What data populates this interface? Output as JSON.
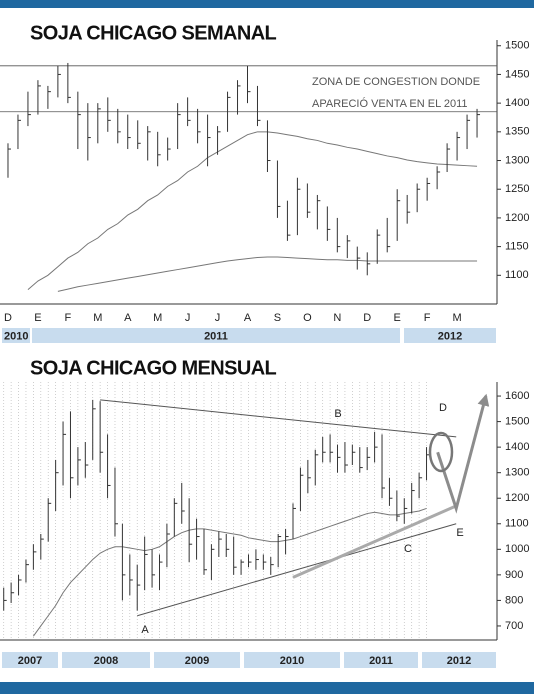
{
  "chart_data": [
    {
      "type": "ohlc",
      "title": "SOJA CHICAGO SEMANAL",
      "categories": [
        "D",
        null,
        null,
        "E",
        null,
        null,
        "F",
        null,
        null,
        "M",
        null,
        null,
        "A",
        null,
        null,
        "M",
        null,
        null,
        "J",
        null,
        null,
        "J",
        null,
        null,
        "A",
        null,
        null,
        "S",
        null,
        null,
        "O",
        null,
        null,
        "N",
        null,
        null,
        "D",
        null,
        null,
        "E",
        null,
        null,
        "F",
        null,
        null,
        "M",
        null,
        null
      ],
      "high": [
        1330,
        1380,
        1420,
        1440,
        1430,
        1465,
        1470,
        1420,
        1400,
        1400,
        1410,
        1390,
        1380,
        1370,
        1360,
        1350,
        1340,
        1400,
        1410,
        1390,
        1380,
        1360,
        1420,
        1440,
        1465,
        1430,
        1370,
        1300,
        1230,
        1270,
        1260,
        1240,
        1220,
        1200,
        1170,
        1150,
        1140,
        1180,
        1200,
        1250,
        1240,
        1260,
        1270,
        1290,
        1330,
        1350,
        1380,
        1390
      ],
      "low": [
        1270,
        1320,
        1360,
        1380,
        1390,
        1410,
        1400,
        1320,
        1300,
        1330,
        1350,
        1330,
        1320,
        1320,
        1300,
        1290,
        1300,
        1320,
        1360,
        1330,
        1290,
        1310,
        1350,
        1380,
        1400,
        1360,
        1280,
        1200,
        1160,
        1170,
        1200,
        1180,
        1160,
        1140,
        1130,
        1110,
        1100,
        1120,
        1140,
        1160,
        1190,
        1210,
        1230,
        1250,
        1280,
        1300,
        1320,
        1340
      ],
      "close": [
        1320,
        1370,
        1380,
        1430,
        1420,
        1450,
        1410,
        1380,
        1340,
        1390,
        1370,
        1350,
        1340,
        1330,
        1350,
        1310,
        1320,
        1380,
        1370,
        1350,
        1340,
        1350,
        1410,
        1430,
        1420,
        1370,
        1300,
        1220,
        1170,
        1250,
        1210,
        1230,
        1180,
        1150,
        1160,
        1130,
        1120,
        1170,
        1150,
        1230,
        1210,
        1250,
        1260,
        1280,
        1320,
        1340,
        1370,
        1380
      ],
      "moving_averages": [
        [
          null,
          null,
          1075,
          1090,
          1100,
          1115,
          1130,
          1140,
          1155,
          1165,
          1180,
          1190,
          1205,
          1215,
          1230,
          1240,
          1255,
          1265,
          1280,
          1290,
          1305,
          1315,
          1325,
          1335,
          1345,
          1350,
          1350,
          1348,
          1345,
          1342,
          1338,
          1335,
          1330,
          1327,
          1323,
          1320,
          1316,
          1312,
          1308,
          1305,
          1301,
          1298,
          1296,
          1294,
          1293,
          1292,
          1291,
          1290
        ],
        [
          null,
          null,
          null,
          null,
          null,
          1072,
          1076,
          1080,
          1083,
          1086,
          1089,
          1092,
          1095,
          1098,
          1101,
          1104,
          1107,
          1110,
          1113,
          1116,
          1119,
          1122,
          1125,
          1127,
          1129,
          1131,
          1132,
          1132,
          1131,
          1130,
          1129,
          1128,
          1127,
          1127,
          1126,
          1126,
          1125,
          1125,
          1125,
          1125,
          1125,
          1125,
          1125,
          1125,
          1125,
          1125,
          1125,
          1125
        ]
      ],
      "hlines": [
        1465,
        1385
      ],
      "annotation": [
        "ZONA DE CONGESTION DONDE",
        "APARECIÓ VENTA EN EL 2011"
      ],
      "years": [
        "2010",
        "2011",
        "2012"
      ],
      "xlim": [
        -0.8,
        49
      ],
      "ylim": [
        1050,
        1510
      ],
      "yticks": [
        1100,
        1150,
        1200,
        1250,
        1300,
        1350,
        1400,
        1450,
        1500
      ],
      "grid": false,
      "color": "#333333",
      "ma_color": "#777777"
    },
    {
      "type": "ohlc",
      "title": "SOJA CHICAGO MENSUAL",
      "high": [
        850,
        870,
        900,
        960,
        1020,
        1060,
        1200,
        1350,
        1500,
        1540,
        1400,
        1420,
        1585,
        1580,
        1450,
        1320,
        1100,
        980,
        940,
        1050,
        1000,
        980,
        1100,
        1200,
        1260,
        1200,
        1120,
        1080,
        1020,
        1070,
        1060,
        1050,
        960,
        980,
        1000,
        980,
        970,
        1060,
        1080,
        1180,
        1320,
        1350,
        1390,
        1440,
        1450,
        1410,
        1420,
        1410,
        1400,
        1400,
        1460,
        1450,
        1280,
        1230,
        1200,
        1260,
        1300,
        1400
      ],
      "low": [
        760,
        790,
        820,
        870,
        920,
        960,
        1030,
        1150,
        1250,
        1200,
        1250,
        1280,
        1350,
        1300,
        1200,
        1050,
        800,
        820,
        760,
        840,
        850,
        840,
        930,
        1050,
        1100,
        950,
        960,
        900,
        880,
        970,
        970,
        900,
        900,
        930,
        920,
        920,
        900,
        930,
        980,
        1040,
        1150,
        1220,
        1250,
        1340,
        1340,
        1300,
        1300,
        1330,
        1300,
        1310,
        1340,
        1200,
        1170,
        1110,
        1100,
        1140,
        1200,
        1270
      ],
      "close": [
        800,
        830,
        880,
        940,
        990,
        1040,
        1180,
        1300,
        1450,
        1280,
        1350,
        1330,
        1550,
        1380,
        1250,
        1100,
        900,
        880,
        860,
        980,
        900,
        950,
        1060,
        1180,
        1150,
        1020,
        1050,
        920,
        1000,
        1040,
        1000,
        930,
        950,
        950,
        960,
        950,
        940,
        1050,
        1050,
        1160,
        1290,
        1280,
        1370,
        1380,
        1380,
        1360,
        1330,
        1380,
        1320,
        1360,
        1400,
        1240,
        1200,
        1130,
        1160,
        1230,
        1280,
        1370
      ],
      "moving_averages": [
        [
          null,
          null,
          null,
          null,
          660,
          700,
          740,
          780,
          830,
          870,
          900,
          930,
          960,
          985,
          1000,
          1010,
          1010,
          1005,
          1000,
          995,
          1000,
          1010,
          1030,
          1050,
          1065,
          1075,
          1080,
          1080,
          1075,
          1070,
          1065,
          1060,
          1055,
          1045,
          1040,
          1035,
          1030,
          1030,
          1035,
          1040,
          1050,
          1060,
          1070,
          1080,
          1090,
          1100,
          1110,
          1120,
          1130,
          1140,
          1145,
          1140,
          1135,
          1135,
          1140,
          1145,
          1150,
          1160
        ]
      ],
      "trendlines": [
        {
          "points": [
            [
              13,
              1585
            ],
            [
              61,
              1440
            ]
          ],
          "color": "#555555",
          "width": 1
        },
        {
          "points": [
            [
              18,
              740
            ],
            [
              61,
              1100
            ]
          ],
          "color": "#555555",
          "width": 1
        },
        {
          "points": [
            [
              39,
              890
            ],
            [
              61,
              1170
            ]
          ],
          "color": "#aaaaaa",
          "width": 3
        },
        {
          "points": [
            [
              58.5,
              1380
            ],
            [
              61,
              1160
            ],
            [
              65,
              1600
            ]
          ],
          "color": "#8c8c8c",
          "width": 3,
          "arrow": true
        }
      ],
      "labels": [
        "A",
        "B",
        "C",
        "D",
        "E"
      ],
      "years": [
        "2007",
        "2008",
        "2009",
        "2010",
        "2011",
        "2012"
      ],
      "xlim": [
        -0.5,
        66.5
      ],
      "ylim": [
        645,
        1655
      ],
      "yticks": [
        700,
        800,
        900,
        1000,
        1100,
        1200,
        1300,
        1400,
        1500,
        1600
      ],
      "grid": true,
      "color": "#333333",
      "ma_color": "#777777"
    }
  ]
}
